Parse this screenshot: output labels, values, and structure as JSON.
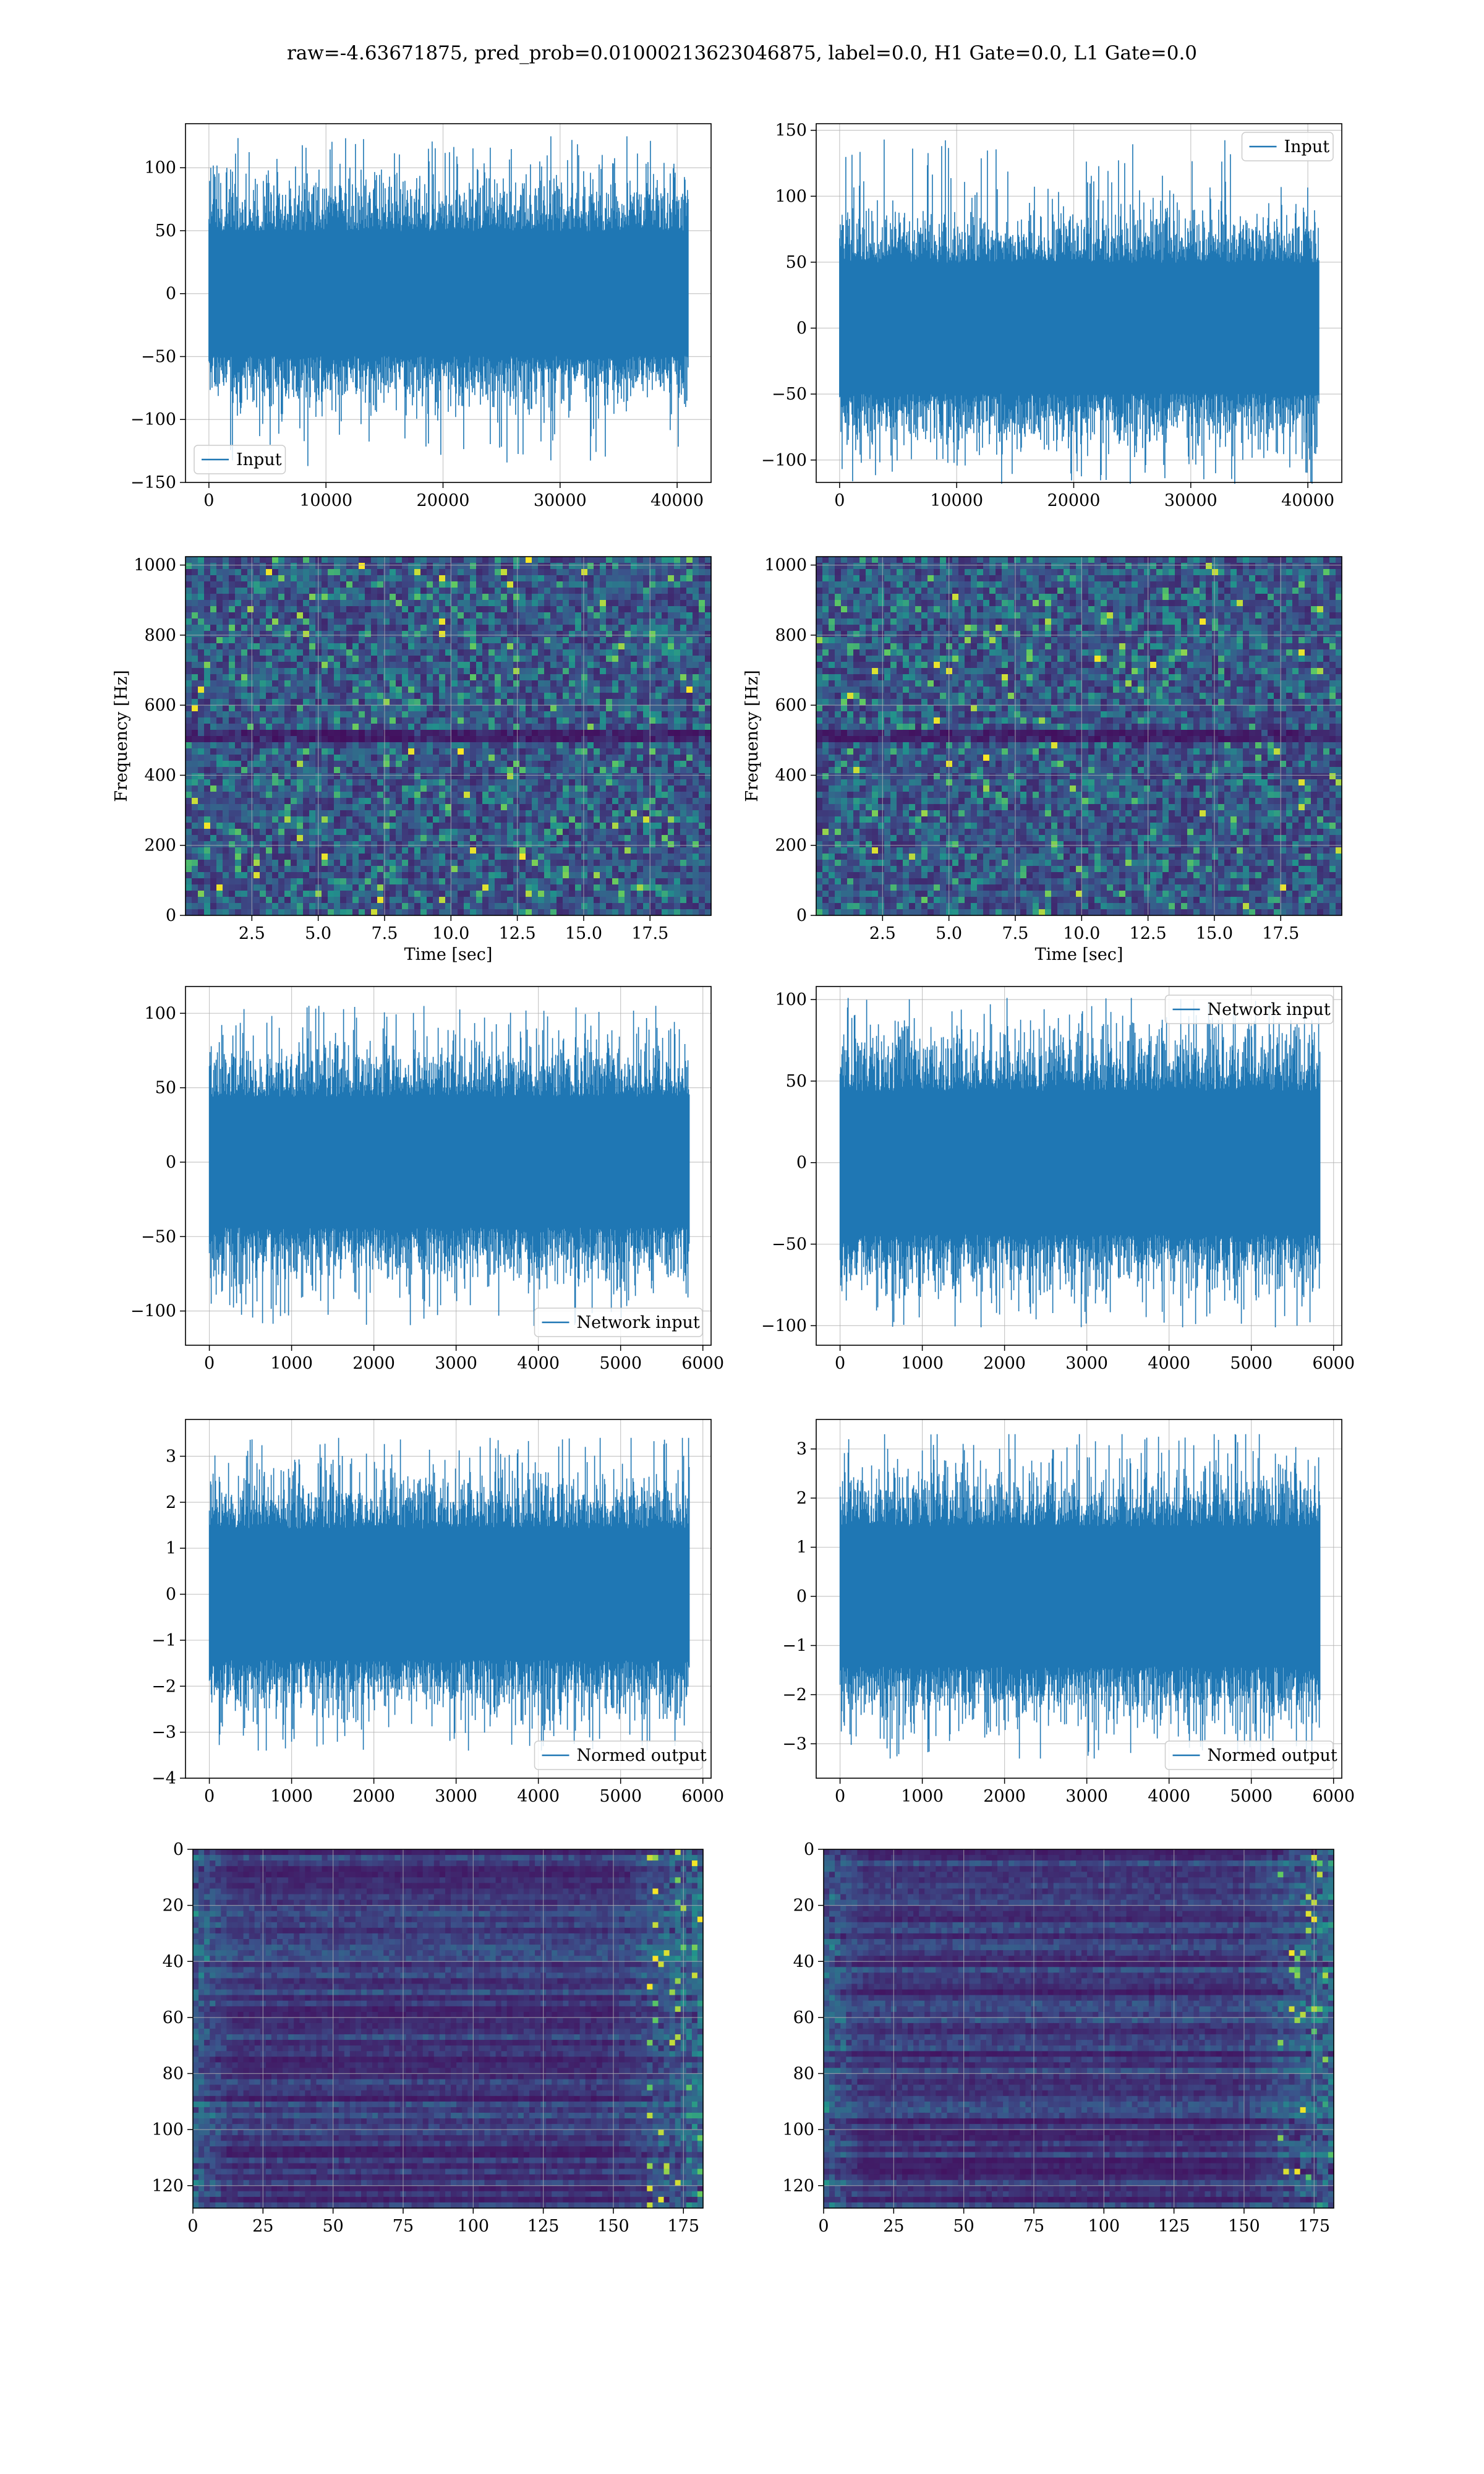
{
  "figure_title": "raw=-4.63671875, pred_prob=0.01000213623046875, label=0.0, H1 Gate=0.0, L1 Gate=0.0",
  "colors": {
    "line": "#1f77b4",
    "viridis_dark": "#440154",
    "viridis_mid": "#21918c",
    "viridis_bright": "#fde725",
    "grid": "#b0b0b0"
  },
  "chart_data": [
    {
      "id": "input-left",
      "type": "line",
      "legend": {
        "label": "Input",
        "placement": "lower left"
      },
      "xlim": [
        -2000,
        42900
      ],
      "ylim": [
        -150,
        135
      ],
      "xticks": [
        0,
        10000,
        20000,
        30000,
        40000
      ],
      "yticks": [
        -150,
        -100,
        -50,
        0,
        50,
        100
      ],
      "signal": {
        "n": 40960,
        "band": 45,
        "peak_max": 125,
        "peak_min": -137
      }
    },
    {
      "id": "input-right",
      "type": "line",
      "legend": {
        "label": "Input",
        "placement": "upper right"
      },
      "xlim": [
        -2000,
        42900
      ],
      "ylim": [
        -117,
        155
      ],
      "xticks": [
        0,
        10000,
        20000,
        30000,
        40000
      ],
      "yticks": [
        -100,
        -50,
        0,
        50,
        100,
        150
      ],
      "signal": {
        "n": 40960,
        "band": 45,
        "peak_max": 143,
        "peak_min": -118
      }
    },
    {
      "id": "spectrogram-left",
      "type": "heatmap",
      "xlabel": "Time [sec]",
      "ylabel": "Frequency [Hz]",
      "xlim": [
        0,
        19.8
      ],
      "ylim": [
        0,
        1024
      ],
      "xticks": [
        "2.5",
        "5.0",
        "7.5",
        "10.0",
        "12.5",
        "15.0",
        "17.5"
      ],
      "yticks": [
        "0",
        "200",
        "400",
        "600",
        "800",
        "1000"
      ]
    },
    {
      "id": "spectrogram-right",
      "type": "heatmap",
      "xlabel": "Time [sec]",
      "ylabel": "Frequency [Hz]",
      "xlim": [
        0,
        19.8
      ],
      "ylim": [
        0,
        1024
      ],
      "xticks": [
        "2.5",
        "5.0",
        "7.5",
        "10.0",
        "12.5",
        "15.0",
        "17.5"
      ],
      "yticks": [
        "0",
        "200",
        "400",
        "600",
        "800",
        "1000"
      ]
    },
    {
      "id": "network-input-left",
      "type": "line",
      "legend": {
        "label": "Network input",
        "placement": "lower right"
      },
      "xlim": [
        -290,
        6100
      ],
      "ylim": [
        -123,
        118
      ],
      "xticks": [
        0,
        1000,
        2000,
        3000,
        4000,
        5000,
        6000
      ],
      "yticks": [
        -100,
        -50,
        0,
        50,
        100
      ],
      "signal": {
        "n": 5840,
        "band": 40,
        "peak_max": 105,
        "peak_min": -110
      }
    },
    {
      "id": "network-input-right",
      "type": "line",
      "legend": {
        "label": "Network input",
        "placement": "upper right"
      },
      "xlim": [
        -290,
        6100
      ],
      "ylim": [
        -112,
        108
      ],
      "xticks": [
        0,
        1000,
        2000,
        3000,
        4000,
        5000,
        6000
      ],
      "yticks": [
        -100,
        -50,
        0,
        50,
        100
      ],
      "signal": {
        "n": 5840,
        "band": 40,
        "peak_max": 101,
        "peak_min": -101
      }
    },
    {
      "id": "normed-output-left",
      "type": "line",
      "legend": {
        "label": "Normed output",
        "placement": "lower right"
      },
      "xlim": [
        -290,
        6100
      ],
      "ylim": [
        -4,
        3.8
      ],
      "xticks": [
        0,
        1000,
        2000,
        3000,
        4000,
        5000,
        6000
      ],
      "yticks": [
        -4,
        -3,
        -2,
        -1,
        0,
        1,
        2,
        3
      ],
      "signal": {
        "n": 5840,
        "band": 1.3,
        "peak_max": 3.4,
        "peak_min": -3.4
      }
    },
    {
      "id": "normed-output-right",
      "type": "line",
      "legend": {
        "label": "Normed output",
        "placement": "lower right"
      },
      "xlim": [
        -290,
        6100
      ],
      "ylim": [
        -3.7,
        3.6
      ],
      "xticks": [
        0,
        1000,
        2000,
        3000,
        4000,
        5000,
        6000
      ],
      "yticks": [
        -3,
        -2,
        -1,
        0,
        1,
        2,
        3
      ],
      "signal": {
        "n": 5840,
        "band": 1.3,
        "peak_max": 3.3,
        "peak_min": -3.3
      }
    },
    {
      "id": "feature-map-left",
      "type": "heatmap",
      "xlim": [
        0,
        182
      ],
      "ylim": [
        128,
        0
      ],
      "xticks": [
        0,
        25,
        50,
        75,
        100,
        125,
        150,
        175
      ],
      "yticks": [
        0,
        20,
        40,
        60,
        80,
        100,
        120
      ]
    },
    {
      "id": "feature-map-right",
      "type": "heatmap",
      "xlim": [
        0,
        182
      ],
      "ylim": [
        128,
        0
      ],
      "xticks": [
        0,
        25,
        50,
        75,
        100,
        125,
        150,
        175
      ],
      "yticks": [
        0,
        20,
        40,
        60,
        80,
        100,
        120
      ]
    }
  ]
}
